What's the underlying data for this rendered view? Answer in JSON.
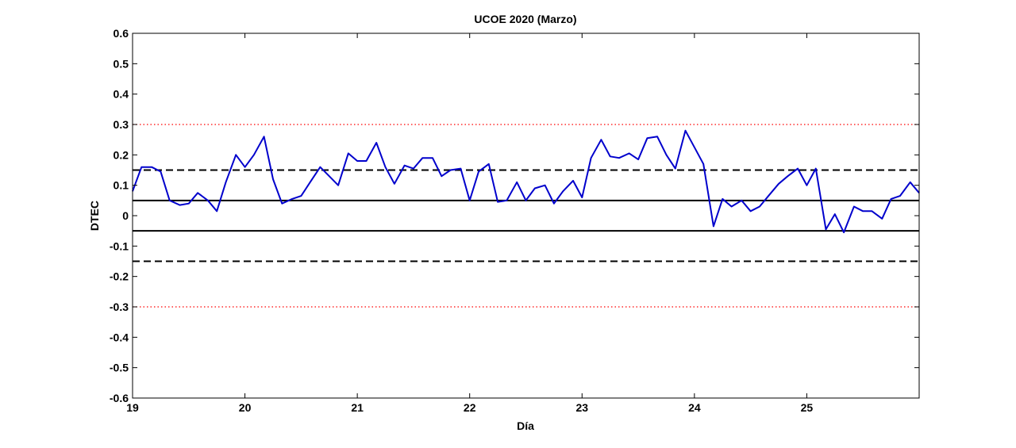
{
  "chart_data": {
    "type": "line",
    "title": "UCOE 2020 (Marzo)",
    "xlabel": "Día",
    "ylabel": "DTEC",
    "xlim": [
      19,
      26
    ],
    "ylim": [
      -0.6,
      0.6
    ],
    "xticks": [
      19,
      20,
      21,
      22,
      23,
      24,
      25
    ],
    "xtick_labels": [
      "19",
      "20",
      "21",
      "22",
      "23",
      "24",
      "25"
    ],
    "yticks": [
      -0.6,
      -0.5,
      -0.4,
      -0.3,
      -0.2,
      -0.1,
      0,
      0.1,
      0.2,
      0.3,
      0.4,
      0.5,
      0.6
    ],
    "ytick_labels": [
      "-0.6",
      "-0.5",
      "-0.4",
      "-0.3",
      "-0.2",
      "-0.1",
      "0",
      "0.1",
      "0.2",
      "0.3",
      "0.4",
      "0.5",
      "0.6"
    ],
    "grid": false,
    "series": [
      {
        "color": "#0000cc",
        "style": "solid",
        "x": [
          19.0,
          19.08,
          19.17,
          19.25,
          19.33,
          19.42,
          19.5,
          19.58,
          19.67,
          19.75,
          19.83,
          19.92,
          20.0,
          20.08,
          20.17,
          20.25,
          20.33,
          20.42,
          20.5,
          20.58,
          20.67,
          20.75,
          20.83,
          20.92,
          21.0,
          21.08,
          21.17,
          21.25,
          21.33,
          21.42,
          21.5,
          21.58,
          21.67,
          21.75,
          21.83,
          21.92,
          22.0,
          22.08,
          22.17,
          22.25,
          22.33,
          22.42,
          22.5,
          22.58,
          22.67,
          22.75,
          22.83,
          22.92,
          23.0,
          23.08,
          23.17,
          23.25,
          23.33,
          23.42,
          23.5,
          23.58,
          23.67,
          23.75,
          23.83,
          23.92,
          24.0,
          24.08,
          24.17,
          24.25,
          24.33,
          24.42,
          24.5,
          24.58,
          24.67,
          24.75,
          24.83,
          24.92,
          25.0,
          25.08,
          25.17,
          25.25,
          25.33,
          25.42,
          25.5,
          25.58,
          25.67,
          25.75,
          25.83,
          25.92,
          26.0
        ],
        "y": [
          0.08,
          0.16,
          0.16,
          0.145,
          0.05,
          0.035,
          0.04,
          0.075,
          0.05,
          0.015,
          0.11,
          0.2,
          0.16,
          0.2,
          0.26,
          0.12,
          0.04,
          0.055,
          0.065,
          0.11,
          0.16,
          0.13,
          0.1,
          0.205,
          0.18,
          0.18,
          0.24,
          0.16,
          0.105,
          0.165,
          0.155,
          0.19,
          0.19,
          0.13,
          0.15,
          0.155,
          0.05,
          0.145,
          0.17,
          0.045,
          0.05,
          0.11,
          0.05,
          0.09,
          0.1,
          0.04,
          0.08,
          0.115,
          0.06,
          0.19,
          0.25,
          0.195,
          0.19,
          0.205,
          0.185,
          0.255,
          0.26,
          0.2,
          0.155,
          0.28,
          0.225,
          0.17,
          -0.035,
          0.055,
          0.03,
          0.05,
          0.015,
          0.03,
          0.07,
          0.105,
          0.13,
          0.155,
          0.1,
          0.155,
          -0.045,
          0.005,
          -0.055,
          0.03,
          0.015,
          0.015,
          -0.01,
          0.055,
          0.065,
          0.11,
          0.075
        ]
      }
    ],
    "reference_lines": [
      {
        "y": 0.05,
        "color": "#000000",
        "style": "solid"
      },
      {
        "y": -0.05,
        "color": "#000000",
        "style": "solid"
      },
      {
        "y": 0.15,
        "color": "#000000",
        "style": "dashed"
      },
      {
        "y": -0.15,
        "color": "#000000",
        "style": "dashed"
      },
      {
        "y": 0.3,
        "color": "#ff0000",
        "style": "dotted"
      },
      {
        "y": -0.3,
        "color": "#ff0000",
        "style": "dotted"
      }
    ]
  }
}
